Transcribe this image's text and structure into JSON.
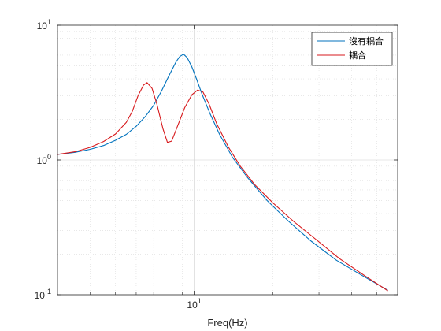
{
  "chart_data": {
    "type": "line",
    "xscale": "log",
    "yscale": "log",
    "xlim": [
      3,
      60
    ],
    "ylim": [
      0.1,
      10
    ],
    "xlabel": "Freq(Hz)",
    "ylabel": "",
    "x_ticks": [
      {
        "base": "10",
        "exp": "1",
        "value": 10
      }
    ],
    "y_ticks": [
      {
        "base": "10",
        "exp": "-1",
        "value": 0.1
      },
      {
        "base": "10",
        "exp": "0",
        "value": 1
      },
      {
        "base": "10",
        "exp": "1",
        "value": 10
      }
    ],
    "grid": true,
    "legend_position": "top-right",
    "series": [
      {
        "name": "沒有耦合",
        "color": "#0072bd",
        "points": [
          [
            3,
            1.1
          ],
          [
            3.5,
            1.14
          ],
          [
            4,
            1.2
          ],
          [
            4.5,
            1.28
          ],
          [
            5,
            1.4
          ],
          [
            5.5,
            1.55
          ],
          [
            6,
            1.78
          ],
          [
            6.5,
            2.1
          ],
          [
            7,
            2.55
          ],
          [
            7.5,
            3.25
          ],
          [
            8,
            4.2
          ],
          [
            8.5,
            5.3
          ],
          [
            8.8,
            5.85
          ],
          [
            9.1,
            6.1
          ],
          [
            9.4,
            5.75
          ],
          [
            9.8,
            4.9
          ],
          [
            10.2,
            4.0
          ],
          [
            10.7,
            3.1
          ],
          [
            11.5,
            2.2
          ],
          [
            12.5,
            1.55
          ],
          [
            14,
            1.05
          ],
          [
            16,
            0.74
          ],
          [
            19,
            0.5
          ],
          [
            23,
            0.35
          ],
          [
            28,
            0.25
          ],
          [
            35,
            0.18
          ],
          [
            45,
            0.135
          ],
          [
            55,
            0.108
          ]
        ]
      },
      {
        "name": "耦合",
        "color": "#d7191c",
        "points": [
          [
            3,
            1.1
          ],
          [
            3.5,
            1.15
          ],
          [
            4,
            1.24
          ],
          [
            4.5,
            1.37
          ],
          [
            5,
            1.56
          ],
          [
            5.5,
            1.9
          ],
          [
            5.8,
            2.3
          ],
          [
            6.1,
            3.0
          ],
          [
            6.4,
            3.6
          ],
          [
            6.6,
            3.75
          ],
          [
            6.9,
            3.4
          ],
          [
            7.2,
            2.6
          ],
          [
            7.6,
            1.7
          ],
          [
            7.9,
            1.35
          ],
          [
            8.2,
            1.38
          ],
          [
            8.6,
            1.75
          ],
          [
            9.2,
            2.45
          ],
          [
            9.8,
            3.05
          ],
          [
            10.3,
            3.3
          ],
          [
            10.8,
            3.2
          ],
          [
            11.4,
            2.6
          ],
          [
            12.2,
            1.85
          ],
          [
            13.5,
            1.25
          ],
          [
            15,
            0.9
          ],
          [
            17,
            0.66
          ],
          [
            20,
            0.48
          ],
          [
            24,
            0.35
          ],
          [
            29,
            0.26
          ],
          [
            36,
            0.185
          ],
          [
            45,
            0.138
          ],
          [
            55,
            0.107
          ]
        ]
      }
    ]
  }
}
